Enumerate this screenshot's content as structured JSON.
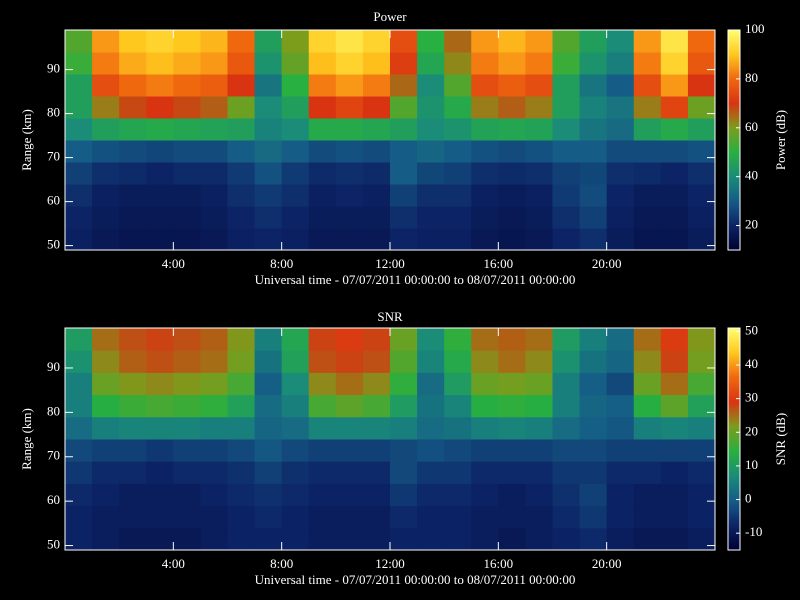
{
  "chart_data": [
    {
      "type": "heatmap",
      "title": "Power",
      "xlabel": "Universal time - 07/07/2011 00:00:00 to 08/07/2011 00:00:00",
      "ylabel": "Range (km)",
      "colorbar_label": "Power (dB)",
      "xlim": [
        0,
        24
      ],
      "ylim": [
        49,
        99
      ],
      "clim": [
        10,
        100
      ],
      "xticks": [
        {
          "value": 4,
          "label": "4:00"
        },
        {
          "value": 8,
          "label": "8:00"
        },
        {
          "value": 12,
          "label": "12:00"
        },
        {
          "value": 16,
          "label": "16:00"
        },
        {
          "value": 20,
          "label": "20:00"
        }
      ],
      "yticks": [
        50,
        60,
        70,
        80,
        90
      ],
      "cticks": [
        20,
        40,
        60,
        80,
        100
      ],
      "colormap": [
        "#000030",
        "#0c2466",
        "#155c86",
        "#1a8c78",
        "#28b040",
        "#7c9c1c",
        "#d83412",
        "#f0680e",
        "#ffc81e",
        "#ffff70"
      ],
      "x": [
        0.5,
        1.5,
        2.5,
        3.5,
        4.5,
        5.5,
        6.5,
        7.5,
        8.5,
        9.5,
        10.5,
        11.5,
        12.5,
        13.5,
        14.5,
        15.5,
        16.5,
        17.5,
        18.5,
        19.5,
        20.5,
        21.5,
        22.5,
        23.5
      ],
      "y": [
        51.5,
        56.5,
        61.5,
        66.5,
        71.5,
        76.5,
        81.5,
        86.5,
        91.5,
        96.5
      ],
      "values": [
        [
          19,
          17,
          16,
          16,
          16,
          17,
          19,
          20,
          19,
          17,
          17,
          17,
          20,
          19,
          19,
          17,
          16,
          17,
          20,
          22,
          18,
          16,
          16,
          18
        ],
        [
          20,
          18,
          17,
          17,
          17,
          18,
          20,
          22,
          20,
          18,
          18,
          18,
          22,
          20,
          20,
          18,
          17,
          18,
          22,
          25,
          19,
          17,
          17,
          19
        ],
        [
          22,
          19,
          18,
          18,
          18,
          19,
          22,
          24,
          22,
          19,
          20,
          19,
          25,
          22,
          22,
          19,
          18,
          19,
          24,
          27,
          20,
          18,
          18,
          20
        ],
        [
          25,
          22,
          21,
          20,
          21,
          21,
          24,
          28,
          24,
          21,
          22,
          21,
          30,
          26,
          25,
          22,
          21,
          22,
          25,
          26,
          22,
          21,
          20,
          22
        ],
        [
          30,
          28,
          27,
          26,
          27,
          27,
          30,
          33,
          30,
          27,
          28,
          27,
          30,
          32,
          30,
          28,
          27,
          28,
          30,
          30,
          27,
          27,
          27,
          28
        ],
        [
          40,
          45,
          47,
          48,
          47,
          46,
          45,
          38,
          40,
          48,
          48,
          47,
          45,
          40,
          42,
          46,
          47,
          46,
          40,
          35,
          33,
          45,
          48,
          45
        ],
        [
          45,
          63,
          68,
          70,
          68,
          66,
          58,
          40,
          45,
          70,
          73,
          70,
          55,
          42,
          48,
          63,
          66,
          63,
          45,
          38,
          35,
          63,
          73,
          58
        ],
        [
          45,
          75,
          80,
          82,
          80,
          78,
          70,
          35,
          50,
          82,
          85,
          82,
          65,
          40,
          55,
          75,
          78,
          75,
          45,
          35,
          30,
          75,
          85,
          70
        ],
        [
          52,
          82,
          87,
          89,
          87,
          85,
          77,
          42,
          57,
          89,
          92,
          89,
          72,
          47,
          62,
          82,
          85,
          82,
          52,
          42,
          37,
          82,
          92,
          77
        ],
        [
          55,
          85,
          90,
          92,
          90,
          88,
          80,
          45,
          60,
          92,
          95,
          92,
          75,
          50,
          65,
          85,
          88,
          85,
          55,
          45,
          40,
          85,
          95,
          80
        ]
      ]
    },
    {
      "type": "heatmap",
      "title": "SNR",
      "xlabel": "Universal time - 07/07/2011 00:00:00 to 08/07/2011 00:00:00",
      "ylabel": "Range (km)",
      "colorbar_label": "SNR (dB)",
      "xlim": [
        0,
        24
      ],
      "ylim": [
        49,
        99
      ],
      "clim": [
        -15,
        51
      ],
      "xticks": [
        {
          "value": 4,
          "label": "4:00"
        },
        {
          "value": 8,
          "label": "8:00"
        },
        {
          "value": 12,
          "label": "12:00"
        },
        {
          "value": 16,
          "label": "16:00"
        },
        {
          "value": 20,
          "label": "20:00"
        }
      ],
      "yticks": [
        50,
        60,
        70,
        80,
        90
      ],
      "cticks": [
        -10,
        0,
        10,
        20,
        30,
        40,
        50
      ],
      "colormap": [
        "#000030",
        "#0c2466",
        "#155c86",
        "#1a8c78",
        "#28b040",
        "#7c9c1c",
        "#d83412",
        "#f0680e",
        "#ffc81e",
        "#ffff70"
      ],
      "x": [
        0.5,
        1.5,
        2.5,
        3.5,
        4.5,
        5.5,
        6.5,
        7.5,
        8.5,
        9.5,
        10.5,
        11.5,
        12.5,
        13.5,
        14.5,
        15.5,
        16.5,
        17.5,
        18.5,
        19.5,
        20.5,
        21.5,
        22.5,
        23.5
      ],
      "y": [
        51.5,
        56.5,
        61.5,
        66.5,
        71.5,
        76.5,
        81.5,
        86.5,
        91.5,
        96.5
      ],
      "values": [
        [
          -8,
          -9,
          -10,
          -10,
          -10,
          -9,
          -8,
          -8,
          -8,
          -9,
          -9,
          -9,
          -8,
          -8,
          -8,
          -9,
          -10,
          -9,
          -8,
          -7,
          -9,
          -10,
          -10,
          -9
        ],
        [
          -8,
          -9,
          -9,
          -9,
          -9,
          -9,
          -8,
          -7,
          -8,
          -9,
          -9,
          -9,
          -7,
          -8,
          -8,
          -9,
          -9,
          -9,
          -7,
          -5,
          -8,
          -9,
          -9,
          -8
        ],
        [
          -7,
          -8,
          -9,
          -9,
          -9,
          -8,
          -7,
          -6,
          -7,
          -8,
          -8,
          -8,
          -5,
          -7,
          -7,
          -8,
          -9,
          -8,
          -6,
          -4,
          -8,
          -9,
          -9,
          -8
        ],
        [
          -5,
          -7,
          -7,
          -8,
          -7,
          -7,
          -6,
          -4,
          -6,
          -7,
          -7,
          -7,
          -3,
          -5,
          -5,
          -7,
          -7,
          -7,
          -5,
          -5,
          -7,
          -7,
          -8,
          -7
        ],
        [
          -3,
          -4,
          -4,
          -5,
          -4,
          -4,
          -3,
          -1,
          -3,
          -4,
          -4,
          -4,
          -3,
          -2,
          -3,
          -4,
          -4,
          -4,
          -3,
          -3,
          -4,
          -4,
          -4,
          -4
        ],
        [
          2,
          5,
          6,
          6,
          6,
          5,
          5,
          1,
          2,
          6,
          6,
          6,
          5,
          2,
          3,
          5,
          6,
          5,
          2,
          0,
          -1,
          5,
          6,
          5
        ],
        [
          5,
          14,
          16,
          17,
          16,
          15,
          11,
          2,
          5,
          17,
          19,
          17,
          10,
          3,
          6,
          14,
          15,
          14,
          5,
          1,
          0,
          14,
          19,
          11
        ],
        [
          5,
          20,
          22,
          23,
          22,
          21,
          17,
          0,
          7,
          23,
          25,
          23,
          15,
          2,
          10,
          20,
          21,
          20,
          5,
          0,
          -3,
          20,
          25,
          17
        ],
        [
          8,
          23,
          26,
          27,
          26,
          25,
          21,
          3,
          11,
          27,
          28,
          27,
          18,
          6,
          13,
          23,
          25,
          23,
          8,
          3,
          1,
          23,
          28,
          21
        ],
        [
          10,
          25,
          27,
          28,
          27,
          26,
          22,
          5,
          12,
          28,
          30,
          28,
          20,
          7,
          15,
          25,
          26,
          25,
          10,
          5,
          2,
          25,
          30,
          22
        ]
      ]
    }
  ]
}
